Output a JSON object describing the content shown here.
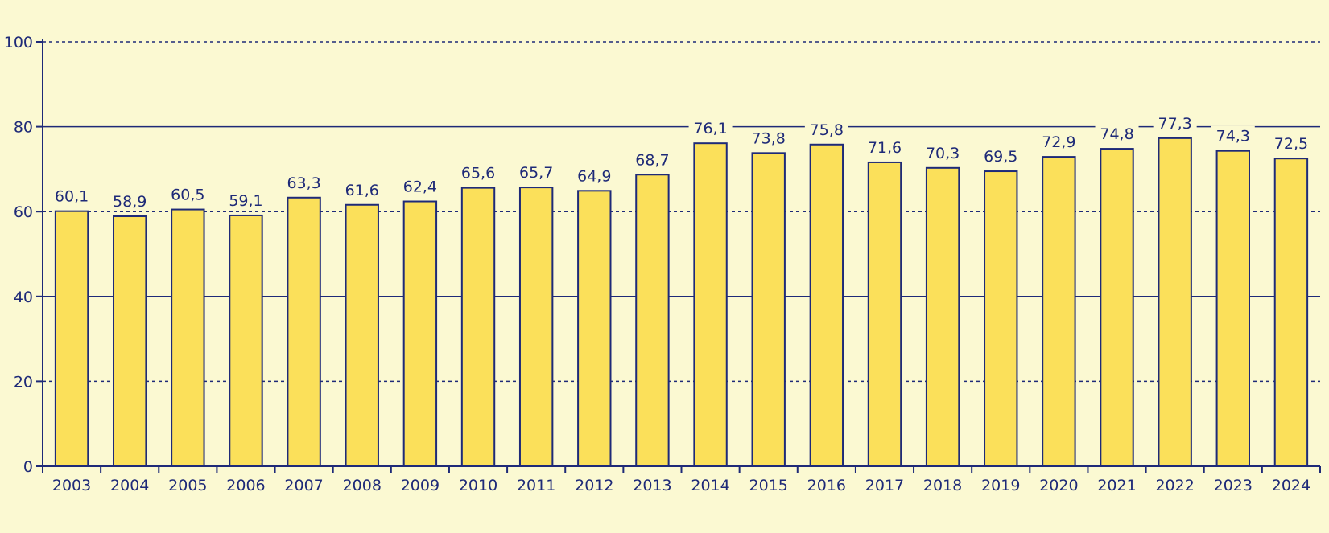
{
  "chart_data": {
    "type": "bar",
    "categories": [
      "2003",
      "2004",
      "2005",
      "2006",
      "2007",
      "2008",
      "2009",
      "2010",
      "2011",
      "2012",
      "2013",
      "2014",
      "2015",
      "2016",
      "2017",
      "2018",
      "2019",
      "2020",
      "2021",
      "2022",
      "2023",
      "2024"
    ],
    "values": [
      60.1,
      58.9,
      60.5,
      59.1,
      63.3,
      61.6,
      62.4,
      65.6,
      65.7,
      64.9,
      68.7,
      76.1,
      73.8,
      75.8,
      71.6,
      70.3,
      69.5,
      72.9,
      74.8,
      77.3,
      74.3,
      72.5
    ],
    "value_labels": [
      "60,1",
      "58,9",
      "60,5",
      "59,1",
      "63,3",
      "61,6",
      "62,4",
      "65,6",
      "65,7",
      "64,9",
      "68,7",
      "76,1",
      "73,8",
      "75,8",
      "71,6",
      "70,3",
      "69,5",
      "72,9",
      "74,8",
      "77,3",
      "74,3",
      "72,5"
    ],
    "yticks": [
      {
        "value": 0,
        "label": "0"
      },
      {
        "value": 20,
        "label": "20"
      },
      {
        "value": 40,
        "label": "40"
      },
      {
        "value": 60,
        "label": "60"
      },
      {
        "value": 80,
        "label": "80"
      },
      {
        "value": 100,
        "label": "100"
      }
    ],
    "ylim": [
      0,
      100
    ],
    "title": "",
    "xlabel": "",
    "ylabel": "",
    "grid": true,
    "colors": {
      "bar": "#fbe05a",
      "stroke": "#1e2a78",
      "background": "#fbf9d2"
    }
  }
}
